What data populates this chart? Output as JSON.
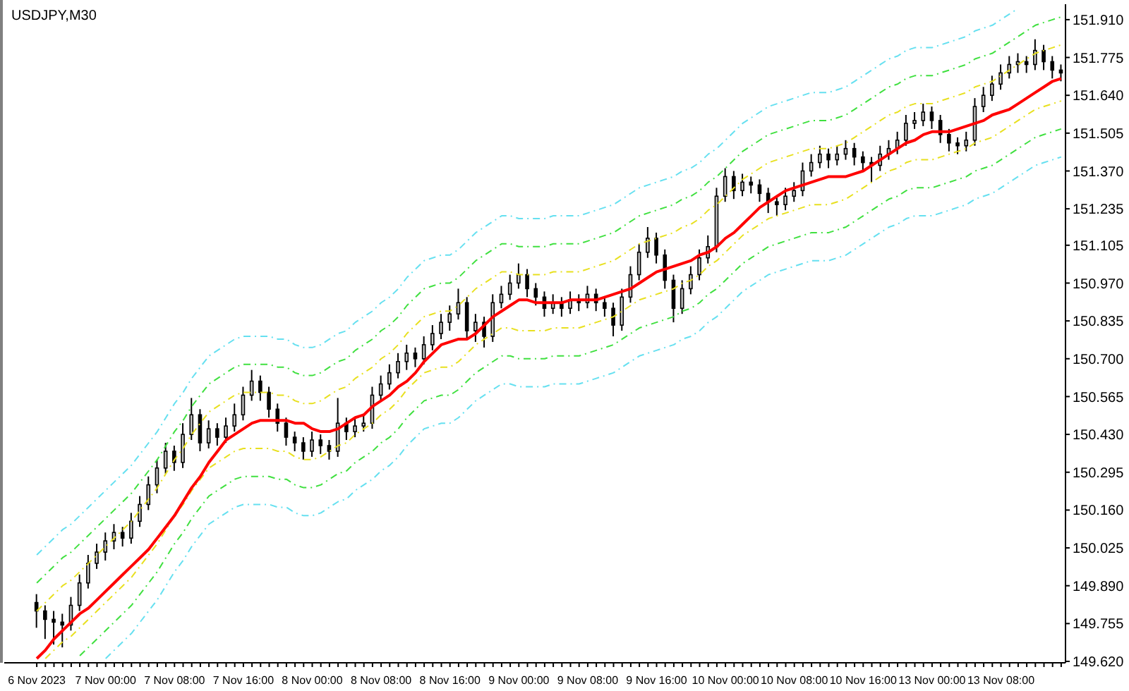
{
  "chart_data": {
    "type": "candlestick",
    "title": "USDJPY,M30",
    "color": "#000000",
    "categories": [
      "6 Nov 2023",
      null,
      null,
      null,
      null,
      null,
      null,
      null,
      "7 Nov 00:00",
      null,
      null,
      null,
      null,
      null,
      null,
      null,
      "7 Nov 08:00",
      null,
      null,
      null,
      null,
      null,
      null,
      null,
      "7 Nov 16:00",
      null,
      null,
      null,
      null,
      null,
      null,
      null,
      "8 Nov 00:00",
      null,
      null,
      null,
      null,
      null,
      null,
      null,
      "8 Nov 08:00",
      null,
      null,
      null,
      null,
      null,
      null,
      null,
      "8 Nov 16:00",
      null,
      null,
      null,
      null,
      null,
      null,
      null,
      "9 Nov 00:00",
      null,
      null,
      null,
      null,
      null,
      null,
      null,
      "9 Nov 08:00",
      null,
      null,
      null,
      null,
      null,
      null,
      null,
      "9 Nov 16:00",
      null,
      null,
      null,
      null,
      null,
      null,
      null,
      "10 Nov 00:00",
      null,
      null,
      null,
      null,
      null,
      null,
      null,
      "10 Nov 08:00",
      null,
      null,
      null,
      null,
      null,
      null,
      null,
      "10 Nov 16:00",
      null,
      null,
      null,
      null,
      null,
      null,
      null,
      "13 Nov 00:00",
      null,
      null,
      null,
      null,
      null,
      null,
      null,
      "13 Nov 08:00",
      null,
      null,
      null,
      null,
      null,
      null,
      null
    ],
    "ohlc": [
      [
        149.83,
        149.86,
        149.74,
        149.8
      ],
      [
        149.8,
        149.82,
        149.7,
        149.77
      ],
      [
        149.77,
        149.8,
        149.68,
        149.76
      ],
      [
        149.76,
        149.79,
        149.67,
        149.75
      ],
      [
        149.75,
        149.85,
        149.73,
        149.82
      ],
      [
        149.82,
        149.93,
        149.8,
        149.9
      ],
      [
        149.9,
        150.0,
        149.88,
        149.97
      ],
      [
        149.97,
        150.04,
        149.95,
        150.01
      ],
      [
        150.01,
        150.08,
        149.98,
        150.05
      ],
      [
        150.05,
        150.11,
        150.02,
        150.08
      ],
      [
        150.08,
        150.1,
        150.03,
        150.06
      ],
      [
        150.06,
        150.15,
        150.04,
        150.12
      ],
      [
        150.12,
        150.21,
        150.1,
        150.18
      ],
      [
        150.18,
        150.28,
        150.16,
        150.25
      ],
      [
        150.25,
        150.34,
        150.22,
        150.31
      ],
      [
        150.31,
        150.4,
        150.29,
        150.37
      ],
      [
        150.37,
        150.39,
        150.3,
        150.33
      ],
      [
        150.33,
        150.47,
        150.31,
        150.43
      ],
      [
        150.43,
        150.56,
        150.41,
        150.5
      ],
      [
        150.5,
        150.52,
        150.37,
        150.4
      ],
      [
        150.4,
        150.48,
        150.38,
        150.45
      ],
      [
        150.45,
        150.47,
        150.39,
        150.42
      ],
      [
        150.42,
        150.49,
        150.4,
        150.46
      ],
      [
        150.46,
        150.54,
        150.44,
        150.5
      ],
      [
        150.5,
        150.6,
        150.48,
        150.57
      ],
      [
        150.57,
        150.66,
        150.55,
        150.62
      ],
      [
        150.62,
        150.64,
        150.55,
        150.58
      ],
      [
        150.58,
        150.6,
        150.49,
        150.52
      ],
      [
        150.52,
        150.54,
        150.44,
        150.47
      ],
      [
        150.47,
        150.49,
        150.39,
        150.42
      ],
      [
        150.42,
        150.44,
        150.37,
        150.4
      ],
      [
        150.4,
        150.42,
        150.34,
        150.37
      ],
      [
        150.37,
        150.44,
        150.35,
        150.41
      ],
      [
        150.41,
        150.43,
        150.36,
        150.39
      ],
      [
        150.39,
        150.41,
        150.34,
        150.37
      ],
      [
        150.37,
        150.56,
        150.35,
        150.47
      ],
      [
        150.47,
        150.49,
        150.41,
        150.44
      ],
      [
        150.44,
        150.49,
        150.42,
        150.46
      ],
      [
        150.46,
        150.5,
        150.44,
        150.47
      ],
      [
        150.47,
        150.6,
        150.45,
        150.57
      ],
      [
        150.57,
        150.64,
        150.55,
        150.61
      ],
      [
        150.61,
        150.68,
        150.59,
        150.65
      ],
      [
        150.65,
        150.72,
        150.63,
        150.69
      ],
      [
        150.69,
        150.75,
        150.66,
        150.72
      ],
      [
        150.72,
        150.74,
        150.67,
        150.7
      ],
      [
        150.7,
        150.78,
        150.68,
        150.75
      ],
      [
        150.75,
        150.82,
        150.73,
        150.79
      ],
      [
        150.79,
        150.86,
        150.77,
        150.83
      ],
      [
        150.83,
        150.89,
        150.8,
        150.86
      ],
      [
        150.86,
        150.95,
        150.84,
        150.9
      ],
      [
        150.9,
        150.92,
        150.77,
        150.8
      ],
      [
        150.8,
        150.86,
        150.76,
        150.83
      ],
      [
        150.83,
        150.85,
        150.74,
        150.78
      ],
      [
        150.78,
        150.93,
        150.76,
        150.9
      ],
      [
        150.9,
        150.96,
        150.88,
        150.93
      ],
      [
        150.93,
        151.0,
        150.91,
        150.97
      ],
      [
        150.97,
        151.04,
        150.95,
        151.0
      ],
      [
        151.0,
        151.02,
        150.92,
        150.95
      ],
      [
        150.95,
        150.97,
        150.89,
        150.92
      ],
      [
        150.92,
        150.94,
        150.85,
        150.88
      ],
      [
        150.88,
        150.93,
        150.86,
        150.9
      ],
      [
        150.9,
        150.92,
        150.85,
        150.88
      ],
      [
        150.88,
        150.94,
        150.86,
        150.91
      ],
      [
        150.91,
        150.93,
        150.87,
        150.9
      ],
      [
        150.9,
        150.96,
        150.88,
        150.93
      ],
      [
        150.93,
        150.95,
        150.87,
        150.9
      ],
      [
        150.9,
        150.92,
        150.85,
        150.88
      ],
      [
        150.88,
        150.9,
        150.78,
        150.82
      ],
      [
        150.82,
        150.95,
        150.8,
        150.92
      ],
      [
        150.92,
        151.03,
        150.9,
        151.0
      ],
      [
        151.0,
        151.11,
        150.98,
        151.08
      ],
      [
        151.08,
        151.17,
        151.06,
        151.13
      ],
      [
        151.13,
        151.15,
        151.04,
        151.07
      ],
      [
        151.07,
        151.09,
        150.95,
        150.98
      ],
      [
        150.98,
        151.0,
        150.83,
        150.88
      ],
      [
        150.88,
        150.98,
        150.86,
        150.95
      ],
      [
        150.95,
        151.03,
        150.93,
        151.0
      ],
      [
        151.0,
        151.09,
        150.98,
        151.06
      ],
      [
        151.06,
        151.14,
        151.04,
        151.1
      ],
      [
        151.1,
        151.31,
        151.08,
        151.28
      ],
      [
        151.28,
        151.38,
        151.26,
        151.35
      ],
      [
        151.35,
        151.37,
        151.27,
        151.3
      ],
      [
        151.3,
        151.36,
        151.28,
        151.33
      ],
      [
        151.33,
        151.35,
        151.29,
        151.32
      ],
      [
        151.32,
        151.34,
        151.26,
        151.29
      ],
      [
        151.29,
        151.31,
        151.22,
        151.26
      ],
      [
        151.26,
        151.28,
        151.21,
        151.25
      ],
      [
        151.25,
        151.31,
        151.23,
        151.28
      ],
      [
        151.28,
        151.33,
        151.26,
        151.3
      ],
      [
        151.3,
        151.4,
        151.28,
        151.37
      ],
      [
        151.37,
        151.43,
        151.35,
        151.4
      ],
      [
        151.4,
        151.46,
        151.38,
        151.43
      ],
      [
        151.43,
        151.45,
        151.38,
        151.41
      ],
      [
        151.41,
        151.46,
        151.39,
        151.43
      ],
      [
        151.43,
        151.48,
        151.41,
        151.45
      ],
      [
        151.45,
        151.47,
        151.39,
        151.42
      ],
      [
        151.42,
        151.44,
        151.37,
        151.4
      ],
      [
        151.4,
        151.42,
        151.33,
        151.39
      ],
      [
        151.39,
        151.46,
        151.37,
        151.43
      ],
      [
        151.43,
        151.48,
        151.41,
        151.45
      ],
      [
        151.45,
        151.51,
        151.43,
        151.48
      ],
      [
        151.48,
        151.57,
        151.46,
        151.54
      ],
      [
        151.54,
        151.58,
        151.52,
        151.55
      ],
      [
        151.55,
        151.61,
        151.53,
        151.58
      ],
      [
        151.58,
        151.6,
        151.52,
        151.55
      ],
      [
        151.55,
        151.57,
        151.47,
        151.5
      ],
      [
        151.5,
        151.52,
        151.44,
        151.47
      ],
      [
        151.47,
        151.49,
        151.43,
        151.46
      ],
      [
        151.46,
        151.51,
        151.44,
        151.48
      ],
      [
        151.48,
        151.63,
        151.46,
        151.6
      ],
      [
        151.6,
        151.67,
        151.58,
        151.64
      ],
      [
        151.64,
        151.71,
        151.62,
        151.68
      ],
      [
        151.68,
        151.75,
        151.66,
        151.72
      ],
      [
        151.72,
        151.78,
        151.7,
        151.75
      ],
      [
        151.75,
        151.79,
        151.72,
        151.76
      ],
      [
        151.76,
        151.78,
        151.72,
        151.75
      ],
      [
        151.75,
        151.84,
        151.73,
        151.8
      ],
      [
        151.8,
        151.82,
        151.73,
        151.76
      ],
      [
        151.76,
        151.78,
        151.7,
        151.73
      ],
      [
        151.73,
        151.75,
        151.69,
        151.72
      ]
    ],
    "series": [
      {
        "type": "line",
        "color": "#66e0f0",
        "line_style": "dashed",
        "values": [
          150.0,
          150.03,
          150.06,
          150.09,
          150.11,
          150.14,
          150.17,
          150.2,
          150.23,
          150.26,
          150.29,
          150.32,
          150.36,
          150.4,
          150.44,
          150.49,
          150.54,
          150.58,
          150.63,
          150.67,
          150.71,
          150.73,
          150.75,
          150.77,
          150.78,
          150.78,
          150.78,
          150.78,
          150.77,
          150.77,
          150.75,
          150.74,
          150.74,
          150.75,
          150.77,
          150.79,
          150.8,
          150.83,
          150.85,
          150.87,
          150.9,
          150.92,
          150.95,
          150.99,
          151.02,
          151.05,
          151.06,
          151.07,
          151.07,
          151.09,
          151.12,
          151.15,
          151.17,
          151.19,
          151.21,
          151.21,
          151.2,
          151.2,
          151.2,
          151.2,
          151.21,
          151.21,
          151.21,
          151.21,
          151.22,
          151.23,
          151.24,
          151.25,
          151.27,
          151.29,
          151.31,
          151.32,
          151.33,
          151.34,
          151.35,
          151.37,
          151.38,
          151.4,
          151.43,
          151.45,
          151.48,
          151.51,
          151.54,
          151.56,
          151.58,
          151.6,
          151.61,
          151.62,
          151.63,
          151.64,
          151.65,
          151.65,
          151.65,
          151.66,
          151.67,
          151.69,
          151.71,
          151.73,
          151.75,
          151.77,
          151.78,
          151.8,
          151.81,
          151.81,
          151.81,
          151.82,
          151.83,
          151.84,
          151.85,
          151.87,
          151.88,
          151.89,
          151.91,
          151.93,
          151.95,
          null,
          null,
          null,
          null,
          null
        ]
      },
      {
        "type": "line",
        "color": "#40e040",
        "line_style": "dashed",
        "values": [
          149.9,
          149.93,
          149.96,
          149.99,
          150.01,
          150.04,
          150.07,
          150.1,
          150.13,
          150.16,
          150.19,
          150.22,
          150.26,
          150.3,
          150.34,
          150.39,
          150.44,
          150.48,
          150.53,
          150.57,
          150.61,
          150.63,
          150.65,
          150.67,
          150.68,
          150.68,
          150.68,
          150.68,
          150.67,
          150.67,
          150.65,
          150.64,
          150.64,
          150.65,
          150.67,
          150.69,
          150.7,
          150.73,
          150.75,
          150.77,
          150.8,
          150.82,
          150.85,
          150.89,
          150.92,
          150.95,
          150.96,
          150.97,
          150.97,
          150.99,
          151.02,
          151.05,
          151.07,
          151.09,
          151.11,
          151.11,
          151.1,
          151.1,
          151.1,
          151.1,
          151.11,
          151.11,
          151.11,
          151.11,
          151.12,
          151.13,
          151.14,
          151.15,
          151.17,
          151.19,
          151.21,
          151.22,
          151.23,
          151.24,
          151.25,
          151.27,
          151.28,
          151.3,
          151.33,
          151.35,
          151.38,
          151.41,
          151.44,
          151.46,
          151.48,
          151.5,
          151.51,
          151.52,
          151.53,
          151.54,
          151.55,
          151.55,
          151.55,
          151.56,
          151.57,
          151.59,
          151.61,
          151.63,
          151.65,
          151.67,
          151.68,
          151.7,
          151.71,
          151.71,
          151.71,
          151.72,
          151.73,
          151.74,
          151.75,
          151.77,
          151.78,
          151.79,
          151.81,
          151.83,
          151.85,
          151.87,
          151.89,
          151.9,
          151.91,
          151.92
        ]
      },
      {
        "type": "line",
        "color": "#e8e020",
        "line_style": "dashed",
        "values": [
          149.8,
          149.83,
          149.86,
          149.89,
          149.91,
          149.94,
          149.97,
          150.0,
          150.03,
          150.06,
          150.09,
          150.12,
          150.16,
          150.2,
          150.24,
          150.29,
          150.34,
          150.38,
          150.43,
          150.47,
          150.51,
          150.53,
          150.55,
          150.57,
          150.58,
          150.58,
          150.58,
          150.58,
          150.57,
          150.57,
          150.55,
          150.54,
          150.54,
          150.55,
          150.57,
          150.59,
          150.6,
          150.63,
          150.65,
          150.67,
          150.7,
          150.72,
          150.75,
          150.79,
          150.82,
          150.85,
          150.86,
          150.87,
          150.87,
          150.89,
          150.92,
          150.95,
          150.97,
          150.99,
          151.01,
          151.01,
          151.0,
          151.0,
          151.0,
          151.0,
          151.01,
          151.01,
          151.01,
          151.01,
          151.02,
          151.03,
          151.04,
          151.05,
          151.07,
          151.09,
          151.11,
          151.12,
          151.13,
          151.14,
          151.15,
          151.17,
          151.18,
          151.2,
          151.23,
          151.25,
          151.28,
          151.31,
          151.34,
          151.36,
          151.38,
          151.4,
          151.41,
          151.42,
          151.43,
          151.44,
          151.45,
          151.45,
          151.45,
          151.46,
          151.47,
          151.49,
          151.51,
          151.53,
          151.55,
          151.57,
          151.58,
          151.6,
          151.61,
          151.61,
          151.61,
          151.62,
          151.63,
          151.64,
          151.65,
          151.67,
          151.68,
          151.69,
          151.71,
          151.73,
          151.75,
          151.77,
          151.79,
          151.8,
          151.81,
          151.82
        ]
      },
      {
        "type": "line",
        "color": "#e8e020",
        "line_style": "dashed",
        "values": [
          null,
          149.63,
          149.66,
          149.69,
          149.71,
          149.74,
          149.77,
          149.8,
          149.83,
          149.86,
          149.89,
          149.92,
          149.96,
          150.0,
          150.04,
          150.09,
          150.14,
          150.18,
          150.23,
          150.27,
          150.31,
          150.33,
          150.35,
          150.37,
          150.38,
          150.38,
          150.38,
          150.38,
          150.37,
          150.37,
          150.35,
          150.34,
          150.34,
          150.35,
          150.37,
          150.39,
          150.4,
          150.43,
          150.45,
          150.47,
          150.5,
          150.52,
          150.55,
          150.59,
          150.62,
          150.65,
          150.66,
          150.67,
          150.67,
          150.69,
          150.72,
          150.75,
          150.77,
          150.79,
          150.81,
          150.81,
          150.8,
          150.8,
          150.8,
          150.8,
          150.81,
          150.81,
          150.81,
          150.81,
          150.82,
          150.83,
          150.84,
          150.85,
          150.87,
          150.89,
          150.91,
          150.92,
          150.93,
          150.94,
          150.95,
          150.97,
          150.98,
          151.0,
          151.03,
          151.05,
          151.08,
          151.11,
          151.14,
          151.16,
          151.18,
          151.2,
          151.21,
          151.22,
          151.23,
          151.24,
          151.25,
          151.25,
          151.25,
          151.26,
          151.27,
          151.29,
          151.31,
          151.33,
          151.35,
          151.37,
          151.38,
          151.4,
          151.41,
          151.41,
          151.41,
          151.42,
          151.43,
          151.44,
          151.45,
          151.47,
          151.48,
          151.49,
          151.51,
          151.53,
          151.55,
          151.57,
          151.59,
          151.6,
          151.61,
          151.62
        ]
      },
      {
        "type": "line",
        "color": "#40e040",
        "line_style": "dashed",
        "values": [
          null,
          null,
          null,
          null,
          null,
          149.64,
          149.67,
          149.7,
          149.73,
          149.76,
          149.79,
          149.82,
          149.86,
          149.9,
          149.94,
          149.99,
          150.04,
          150.08,
          150.13,
          150.17,
          150.21,
          150.23,
          150.25,
          150.27,
          150.28,
          150.28,
          150.28,
          150.28,
          150.27,
          150.27,
          150.25,
          150.24,
          150.24,
          150.25,
          150.27,
          150.29,
          150.3,
          150.33,
          150.35,
          150.37,
          150.4,
          150.42,
          150.45,
          150.49,
          150.52,
          150.55,
          150.56,
          150.57,
          150.57,
          150.59,
          150.62,
          150.65,
          150.67,
          150.69,
          150.71,
          150.71,
          150.7,
          150.7,
          150.7,
          150.7,
          150.71,
          150.71,
          150.71,
          150.71,
          150.72,
          150.73,
          150.74,
          150.75,
          150.77,
          150.79,
          150.81,
          150.82,
          150.83,
          150.84,
          150.85,
          150.87,
          150.88,
          150.9,
          150.93,
          150.95,
          150.98,
          151.01,
          151.04,
          151.06,
          151.08,
          151.1,
          151.11,
          151.12,
          151.13,
          151.14,
          151.15,
          151.15,
          151.15,
          151.16,
          151.17,
          151.19,
          151.21,
          151.23,
          151.25,
          151.27,
          151.28,
          151.3,
          151.31,
          151.31,
          151.31,
          151.32,
          151.33,
          151.34,
          151.35,
          151.37,
          151.38,
          151.39,
          151.41,
          151.43,
          151.45,
          151.47,
          151.49,
          151.5,
          151.51,
          151.52
        ]
      },
      {
        "type": "line",
        "color": "#66e0f0",
        "line_style": "dashed",
        "values": [
          null,
          null,
          null,
          null,
          null,
          null,
          null,
          null,
          149.63,
          149.66,
          149.69,
          149.72,
          149.76,
          149.8,
          149.84,
          149.89,
          149.94,
          149.98,
          150.03,
          150.07,
          150.11,
          150.13,
          150.15,
          150.17,
          150.18,
          150.18,
          150.18,
          150.18,
          150.17,
          150.17,
          150.15,
          150.14,
          150.14,
          150.15,
          150.17,
          150.19,
          150.2,
          150.23,
          150.25,
          150.27,
          150.3,
          150.32,
          150.35,
          150.39,
          150.42,
          150.45,
          150.46,
          150.47,
          150.47,
          150.49,
          150.52,
          150.55,
          150.57,
          150.59,
          150.61,
          150.61,
          150.6,
          150.6,
          150.6,
          150.6,
          150.61,
          150.61,
          150.61,
          150.61,
          150.62,
          150.63,
          150.64,
          150.65,
          150.67,
          150.69,
          150.71,
          150.72,
          150.73,
          150.74,
          150.75,
          150.77,
          150.78,
          150.8,
          150.83,
          150.85,
          150.88,
          150.91,
          150.94,
          150.96,
          150.98,
          151.0,
          151.01,
          151.02,
          151.03,
          151.04,
          151.05,
          151.05,
          151.05,
          151.06,
          151.07,
          151.09,
          151.11,
          151.13,
          151.15,
          151.17,
          151.18,
          151.2,
          151.21,
          151.21,
          151.21,
          151.22,
          151.23,
          151.24,
          151.25,
          151.27,
          151.28,
          151.29,
          151.31,
          151.33,
          151.35,
          151.37,
          151.39,
          151.4,
          151.41,
          151.42
        ]
      },
      {
        "type": "line",
        "color": "#ff0000",
        "line_style": "solid",
        "values": [
          149.63,
          149.66,
          149.7,
          149.73,
          149.76,
          149.79,
          149.81,
          149.84,
          149.87,
          149.9,
          149.93,
          149.96,
          149.99,
          150.02,
          150.06,
          150.1,
          150.14,
          150.19,
          150.24,
          150.28,
          150.33,
          150.37,
          150.41,
          150.43,
          150.45,
          150.47,
          150.48,
          150.48,
          150.48,
          150.48,
          150.47,
          150.47,
          150.45,
          150.44,
          150.44,
          150.45,
          150.47,
          150.49,
          150.5,
          150.53,
          150.55,
          150.57,
          150.6,
          150.62,
          150.65,
          150.69,
          150.72,
          150.75,
          150.76,
          150.77,
          150.77,
          150.79,
          150.82,
          150.85,
          150.87,
          150.89,
          150.91,
          150.91,
          150.9,
          150.9,
          150.9,
          150.9,
          150.91,
          150.91,
          150.91,
          150.91,
          150.92,
          150.93,
          150.94,
          150.95,
          150.97,
          150.99,
          151.01,
          151.02,
          151.03,
          151.04,
          151.05,
          151.07,
          151.08,
          151.1,
          151.13,
          151.15,
          151.18,
          151.21,
          151.24,
          151.26,
          151.28,
          151.3,
          151.31,
          151.32,
          151.33,
          151.34,
          151.35,
          151.35,
          151.35,
          151.36,
          151.37,
          151.39,
          151.41,
          151.43,
          151.45,
          151.47,
          151.48,
          151.5,
          151.51,
          151.51,
          151.51,
          151.52,
          151.53,
          151.54,
          151.55,
          151.57,
          151.58,
          151.59,
          151.61,
          151.63,
          151.65,
          151.67,
          151.69,
          151.7
        ]
      }
    ],
    "ylim": [
      149.615,
      151.965
    ],
    "yticks": [
      {
        "value": 149.62,
        "label": "149.620"
      },
      {
        "value": 149.755,
        "label": "149.755"
      },
      {
        "value": 149.89,
        "label": "149.890"
      },
      {
        "value": 150.025,
        "label": "150.025"
      },
      {
        "value": 150.16,
        "label": "150.160"
      },
      {
        "value": 150.295,
        "label": "150.295"
      },
      {
        "value": 150.43,
        "label": "150.430"
      },
      {
        "value": 150.565,
        "label": "150.565"
      },
      {
        "value": 150.7,
        "label": "150.700"
      },
      {
        "value": 150.835,
        "label": "150.835"
      },
      {
        "value": 150.97,
        "label": "150.970"
      },
      {
        "value": 151.105,
        "label": "151.105"
      },
      {
        "value": 151.235,
        "label": "151.235"
      },
      {
        "value": 151.37,
        "label": "151.370"
      },
      {
        "value": 151.505,
        "label": "151.505"
      },
      {
        "value": 151.64,
        "label": "151.640"
      },
      {
        "value": 151.775,
        "label": "151.775"
      },
      {
        "value": 151.91,
        "label": "151.910"
      }
    ]
  }
}
